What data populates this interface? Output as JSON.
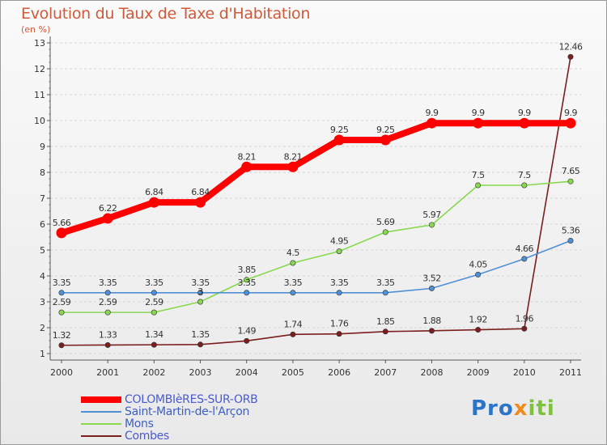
{
  "chart_data": {
    "type": "line",
    "title": "Evolution du Taux de Taxe d'Habitation",
    "subtitle": "(en %)",
    "xlabel": "",
    "ylabel": "",
    "x": [
      "2000",
      "2001",
      "2002",
      "2003",
      "2004",
      "2005",
      "2006",
      "2007",
      "2008",
      "2009",
      "2010",
      "2011"
    ],
    "ylim": [
      0.75,
      13.25
    ],
    "yticks": [
      1,
      2,
      3,
      4,
      5,
      6,
      7,
      8,
      9,
      10,
      11,
      12,
      13
    ],
    "grid": "horizontal dashed",
    "legend_position": "bottom-left",
    "series": [
      {
        "name": "COLOMBIèRES-SUR-ORB",
        "color": "#ff0000",
        "values": [
          5.66,
          6.22,
          6.84,
          6.84,
          8.21,
          8.21,
          9.25,
          9.25,
          9.9,
          9.9,
          9.9,
          9.9
        ],
        "labels": [
          "5.66",
          "6.22",
          "6.84",
          "6.84",
          "8.21",
          "8.21",
          "9.25",
          "9.25",
          "9.9",
          "9.9",
          "9.9",
          "9.9"
        ]
      },
      {
        "name": "Saint-Martin-de-l'Arçon",
        "color": "#4f8fd6",
        "values": [
          3.35,
          3.35,
          3.35,
          3.35,
          3.35,
          3.35,
          3.35,
          3.35,
          3.52,
          4.05,
          4.66,
          5.36
        ],
        "labels": [
          "3.35",
          "3.35",
          "3.35",
          "3.35",
          "3.35",
          "3.35",
          "3.35",
          "3.35",
          "3.52",
          "4.05",
          "4.66",
          "5.36"
        ]
      },
      {
        "name": "Mons",
        "color": "#88d850",
        "values": [
          2.59,
          2.59,
          2.59,
          3.0,
          3.85,
          4.5,
          4.95,
          5.69,
          5.97,
          7.5,
          7.5,
          7.65
        ],
        "labels": [
          "2.59",
          "2.59",
          "2.59",
          "3",
          "3.85",
          "4.5",
          "4.95",
          "5.69",
          "5.97",
          "7.5",
          "7.5",
          "7.65"
        ]
      },
      {
        "name": "Combes",
        "color": "#7a1e1e",
        "values": [
          1.32,
          1.33,
          1.34,
          1.35,
          1.49,
          1.74,
          1.76,
          1.85,
          1.88,
          1.92,
          1.96,
          12.46
        ],
        "labels": [
          "1.32",
          "1.33",
          "1.34",
          "1.35",
          "1.49",
          "1.74",
          "1.76",
          "1.85",
          "1.88",
          "1.92",
          "1.96",
          "12.46"
        ]
      }
    ]
  },
  "brand": {
    "part1": "Pro",
    "part2": "x",
    "part3": "iti"
  }
}
